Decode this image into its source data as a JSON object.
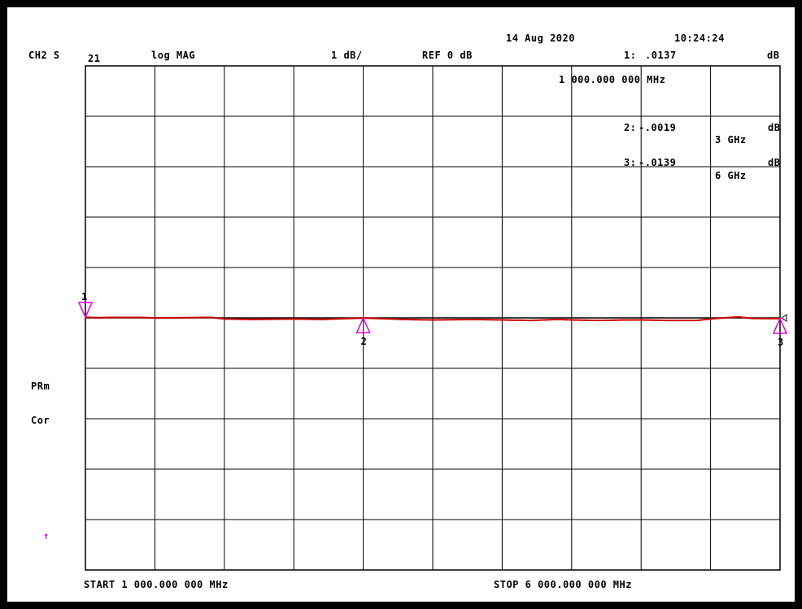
{
  "header": {
    "channel": "CH2 S",
    "param": "21",
    "format": "log MAG",
    "scale": "1 dB/",
    "ref": "REF 0 dB",
    "date": "14 Aug 2020",
    "time": "10:24:24",
    "active_marker_label": "1:",
    "active_marker_value": ".0137",
    "active_marker_unit": "dB",
    "active_marker_freq": "1 000.000 000 MHz"
  },
  "marker_table": [
    {
      "label": "2:",
      "value": "-.0019",
      "unit": "dB",
      "freq": "3 GHz"
    },
    {
      "label": "3:",
      "value": "-.0139",
      "unit": "dB",
      "freq": "6 GHz"
    }
  ],
  "side": {
    "prm": "PRm",
    "cor": "Cor",
    "arrow": "↑"
  },
  "footer": {
    "start": "START 1 000.000 000 MHz",
    "stop": "STOP 6 000.000 000 MHz"
  },
  "colors": {
    "trace": "#cc0000",
    "marker": "#e000e0",
    "grid": "#000000",
    "background": "#ffffff"
  },
  "chart_data": {
    "type": "line",
    "title": "",
    "xlabel": "",
    "ylabel": "",
    "x_unit": "MHz",
    "y_unit": "dB",
    "xlim": [
      1000,
      6000
    ],
    "ylim": [
      -5,
      5
    ],
    "grid": true,
    "series": [
      {
        "x": [
          1000,
          1100,
          1200,
          1400,
          1500,
          1700,
          1900,
          2000,
          2200,
          2500,
          2700,
          3000,
          3300,
          3500,
          3800,
          4000,
          4200,
          4400,
          4500,
          4700,
          4900,
          5000,
          5200,
          5400,
          5500,
          5700,
          5800,
          6000
        ],
        "y": [
          0.0137,
          0.005,
          0.01,
          0.008,
          0.0,
          0.005,
          0.01,
          -0.02,
          -0.03,
          -0.02,
          -0.03,
          -0.0019,
          -0.03,
          -0.04,
          -0.03,
          -0.04,
          -0.05,
          -0.03,
          -0.04,
          -0.05,
          -0.04,
          -0.04,
          -0.05,
          -0.05,
          -0.02,
          0.02,
          -0.01,
          -0.0139
        ]
      }
    ],
    "markers": [
      {
        "id": "1",
        "x": 1000,
        "y": 0.0137,
        "style": "down"
      },
      {
        "id": "2",
        "x": 3000,
        "y": -0.0019,
        "style": "up"
      },
      {
        "id": "3",
        "x": 6000,
        "y": -0.0139,
        "style": "up"
      }
    ],
    "reference_level": 0
  }
}
